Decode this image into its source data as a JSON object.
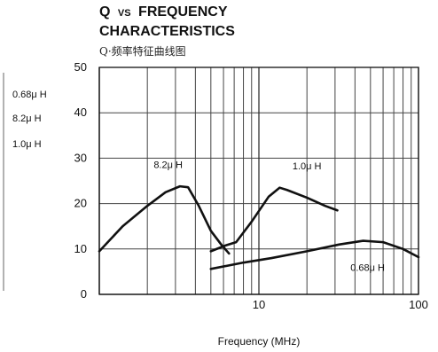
{
  "chart_data": {
    "type": "line",
    "title_prefix": "Q",
    "title_vs": "VS",
    "title_word": "FREQUENCY",
    "title_line2": "CHARACTERISTICS",
    "subtitle": "Q·频率特征曲线图",
    "xlabel": "Frequency (MHz)",
    "ylabel": "",
    "xscale": "log",
    "xlim": [
      1,
      100
    ],
    "ylim": [
      0,
      50
    ],
    "grid": true,
    "x_ticks": [
      {
        "value": 10,
        "label": "10"
      },
      {
        "value": 100,
        "label": "100"
      }
    ],
    "y_ticks": [
      {
        "value": 0,
        "label": "0"
      },
      {
        "value": 10,
        "label": "10"
      },
      {
        "value": 20,
        "label": "20"
      },
      {
        "value": 30,
        "label": "30"
      },
      {
        "value": 40,
        "label": "40"
      },
      {
        "value": 50,
        "label": "50"
      }
    ],
    "series": [
      {
        "name": "8.2μ H",
        "color": "#111111",
        "points": [
          [
            1.0,
            9.5
          ],
          [
            1.4,
            15.0
          ],
          [
            2.0,
            19.5
          ],
          [
            2.6,
            22.5
          ],
          [
            3.2,
            23.8
          ],
          [
            3.6,
            23.6
          ],
          [
            4.2,
            19.5
          ],
          [
            5.0,
            14.0
          ],
          [
            5.8,
            11.0
          ],
          [
            6.5,
            9.0
          ]
        ]
      },
      {
        "name": "1.0μ H",
        "color": "#111111",
        "points": [
          [
            5.0,
            9.5
          ],
          [
            6.2,
            10.8
          ],
          [
            7.2,
            11.5
          ],
          [
            9.0,
            16.0
          ],
          [
            11.5,
            21.5
          ],
          [
            13.5,
            23.5
          ],
          [
            15.0,
            23.0
          ],
          [
            20.0,
            21.3
          ],
          [
            26.0,
            19.5
          ],
          [
            31.0,
            18.5
          ]
        ]
      },
      {
        "name": "0.68μ H",
        "color": "#111111",
        "points": [
          [
            5.0,
            5.6
          ],
          [
            8.0,
            7.0
          ],
          [
            12.0,
            8.0
          ],
          [
            20.0,
            9.5
          ],
          [
            32.0,
            11.0
          ],
          [
            45.0,
            11.8
          ],
          [
            60.0,
            11.5
          ],
          [
            80.0,
            10.0
          ],
          [
            100.0,
            8.2
          ]
        ]
      }
    ],
    "annotations": [
      {
        "text": "8.2μ H",
        "x": 2.7,
        "y": 27.8
      },
      {
        "text": "1.0μ H",
        "x": 20.0,
        "y": 27.5
      },
      {
        "text": "0.68μ H",
        "x": 48.0,
        "y": 5.2
      }
    ],
    "side_legend": [
      "0.68μ H",
      "8.2μ H",
      "1.0μ H"
    ]
  }
}
